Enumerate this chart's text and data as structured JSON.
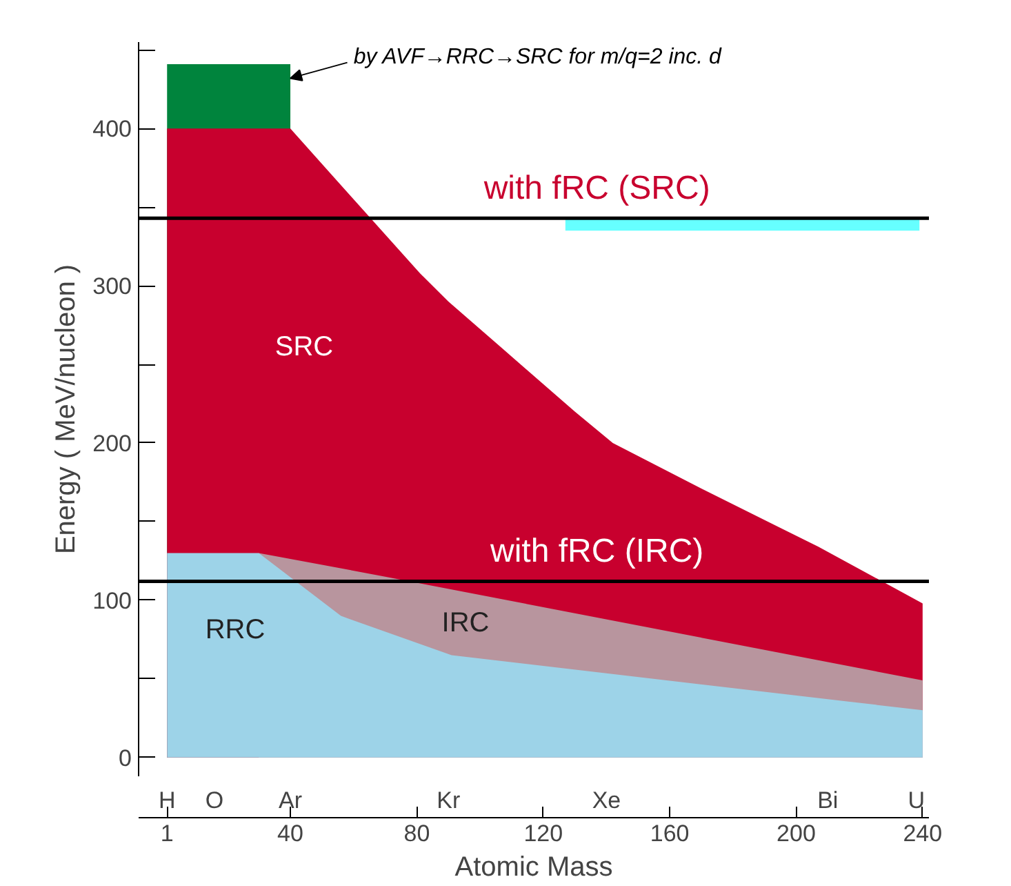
{
  "chart_data": {
    "type": "area",
    "xlabel": "Atomic Mass",
    "ylabel": "Energy ( MeV/nucleon )",
    "xlim": [
      -8,
      242
    ],
    "xticks": [
      1,
      40,
      80,
      120,
      160,
      200,
      240
    ],
    "ylim": [
      -12,
      455
    ],
    "yticks": [
      0,
      {
        "value": 50,
        "label": null
      },
      100,
      {
        "value": 150,
        "label": null
      },
      200,
      {
        "value": 250,
        "label": null
      },
      300,
      {
        "value": 350,
        "label": null
      },
      400,
      {
        "value": 450,
        "label": null
      }
    ],
    "grid": false,
    "series": [
      {
        "color": "#00843d",
        "x": [
          1,
          40
        ],
        "values": [
          441,
          441
        ]
      },
      {
        "color": "#c8002e",
        "x": [
          1,
          40,
          60,
          81,
          90,
          110,
          130,
          142,
          171,
          207,
          240
        ],
        "values": [
          400,
          400,
          355,
          308,
          290,
          255,
          220,
          200,
          170,
          134,
          98
        ]
      },
      {
        "color": "#b8959e",
        "x": [
          30,
          70,
          240
        ],
        "values": [
          130,
          115,
          49
        ]
      },
      {
        "color": "#9dd3e8",
        "x": [
          1,
          30,
          56,
          91,
          240
        ],
        "values": [
          130,
          130,
          90,
          65,
          30
        ]
      },
      {
        "type": "line",
        "color": "#66ffff",
        "x": [
          127,
          239
        ],
        "values": [
          339,
          339
        ]
      }
    ],
    "ref_lines": [
      {
        "axis": "y",
        "value": 343,
        "label": "with fRC (SRC)",
        "color": "#000000"
      },
      {
        "axis": "y",
        "value": 112,
        "label": "with fRC (IRC)",
        "color": "#000000"
      }
    ],
    "annotations": [
      {
        "text": "by AVF→RRC→SRC for m/q=2 inc. d⃗",
        "x": 40,
        "y": 432
      },
      "SRC",
      "IRC",
      "RRC",
      "H",
      "O",
      "Ar",
      "Kr",
      "Xe",
      "Bi",
      "U"
    ]
  }
}
